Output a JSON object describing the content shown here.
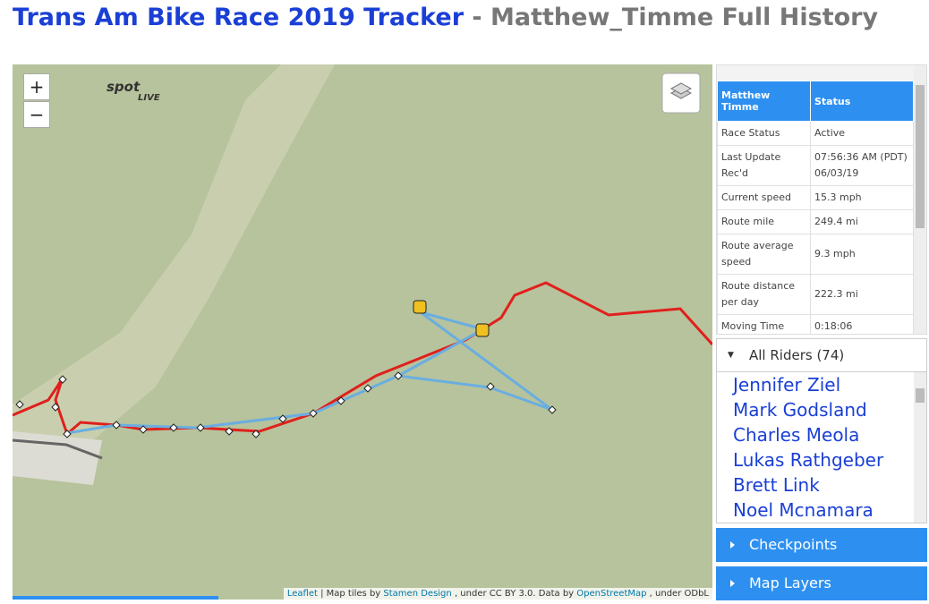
{
  "header": {
    "title": "Trans Am Bike Race 2019 Tracker",
    "subtitle": "- Matthew_Timme Full History"
  },
  "map": {
    "zoom_in": "+",
    "zoom_out": "−",
    "logo": "spot",
    "logo_sub": "LIVE",
    "attribution": [
      "Leaflet",
      "| Map tiles by",
      "Stamen Design",
      ", under CC BY 3.0. Data by",
      "OpenStreetMap",
      ", under ODbL"
    ]
  },
  "status_table": {
    "headers": [
      "Matthew Timme",
      "Status"
    ],
    "rows": [
      [
        "Race Status",
        "Active"
      ],
      [
        "Last Update Rec'd",
        "07:56:36 AM (PDT) 06/03/19"
      ],
      [
        "Current speed",
        "15.3 mph"
      ],
      [
        "Route mile",
        "249.4 mi"
      ],
      [
        "Route average speed",
        "9.3 mph"
      ],
      [
        "Route distance per day",
        "222.3 mi"
      ],
      [
        "Moving Time",
        "0:18:06"
      ]
    ]
  },
  "riders": {
    "heading": "All Riders (74)",
    "names": [
      "Jennifer Ziel",
      "Mark Godsland",
      "Charles Meola",
      "Lukas Rathgeber",
      "Brett Link",
      "Noel Mcnamara"
    ]
  },
  "panels": [
    "Checkpoints",
    "Map Layers"
  ]
}
